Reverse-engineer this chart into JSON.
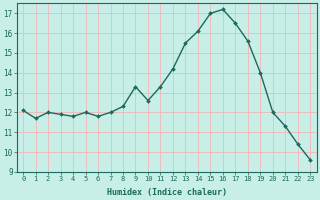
{
  "x": [
    0,
    1,
    2,
    3,
    4,
    5,
    6,
    7,
    8,
    9,
    10,
    11,
    12,
    13,
    14,
    15,
    16,
    17,
    18,
    19,
    20,
    21,
    22,
    23
  ],
  "y": [
    12.1,
    11.7,
    12.0,
    11.9,
    11.8,
    12.0,
    11.8,
    12.0,
    12.3,
    13.3,
    12.6,
    13.3,
    14.2,
    15.5,
    16.1,
    17.0,
    17.2,
    16.5,
    15.6,
    14.0,
    12.0,
    11.3,
    10.4,
    9.6
  ],
  "ylim": [
    9,
    17.5
  ],
  "yticks": [
    9,
    10,
    11,
    12,
    13,
    14,
    15,
    16,
    17
  ],
  "xlabel": "Humidex (Indice chaleur)",
  "line_color": "#1a6b5a",
  "marker_color": "#1a6b5a",
  "bg_color": "#c8eee8",
  "grid_color": "#f0b8b8",
  "xlabel_color": "#1a6b5a",
  "tick_color": "#1a6b5a",
  "font_family": "monospace",
  "figsize": [
    3.2,
    2.0
  ],
  "dpi": 100
}
